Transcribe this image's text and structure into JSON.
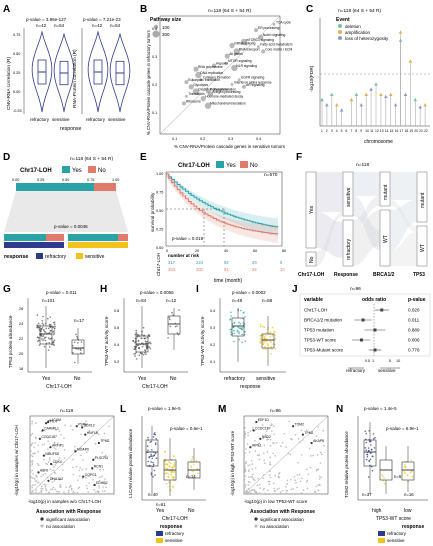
{
  "colors": {
    "refractory": "#2f3a8f",
    "sensitive": "#f2c31b",
    "teal": "#2aa3a8",
    "salmon": "#e07a6b",
    "deletion": "#7fbfa3",
    "amplification": "#e2b14e",
    "loh": "#8f9cc6",
    "grey": "#9a9a9a"
  },
  "panels": {
    "A": {
      "letter": "A",
      "left": {
        "ylabel": "CNV-RNA correlation (R)",
        "pvalue": "p-value = 3.96e-127",
        "n1": "n=42",
        "n2": "n=54"
      },
      "right": {
        "ylabel": "RNA-Protein correlation (R)",
        "pvalue": "p-value = 7.21e-23",
        "n1": "n=42",
        "n2": "n=54"
      },
      "xlabel": "response",
      "yticks": [
        "0.75",
        "0.50",
        "0.25",
        "0.00",
        "-0.25"
      ],
      "cats": [
        "refractory",
        "sensitive"
      ]
    },
    "B": {
      "letter": "B",
      "n": "n=118 (64 S + 54 R)",
      "legend_title": "Pathway size",
      "legend_items": [
        "100",
        "300"
      ],
      "xlabel": "% CNV-RNA/Protein cascade genes in sensitive tumors",
      "ylabel": "% CNV-RNA/Protein cascade genes in refractory tumors",
      "xticks": [
        "0.1",
        "0.2",
        "0.3",
        "0.4"
      ],
      "yticks": [
        "0.4",
        "0.3",
        "0.2",
        "0.1"
      ],
      "labels": [
        "TCA cycle",
        "ER processing",
        "Notch signaling",
        "mTORC1 signaling",
        "Fatty acid metabolism",
        "Core matrix / ECM",
        "mRNA splicing",
        "RNA transport",
        "MTOR signaling",
        "Hypoxia",
        "RNA polymerase",
        "DNA replication",
        "Collagen formation",
        "Eukaryotic translation",
        "Glycolysis",
        "Oxidative phosphorylation",
        "Translation",
        "Ribosome",
        "Hormone-mediated decay",
        "NLR signaling",
        "Interferon alpha response",
        "Proteasome",
        "Antigen processing",
        "Mitochondrial translation",
        "EGFR signaling",
        "AR signaling",
        "All genes"
      ]
    },
    "C": {
      "letter": "C",
      "n": "n=118 (64 S + 54 R)",
      "legend_title": "Event",
      "legend_items": [
        "deletion",
        "amplification",
        "loss of heterozygosity"
      ],
      "xlabel": "chromosome",
      "ylabel": "-log10(FDR)",
      "xticks": [
        "1",
        "2",
        "3",
        "4",
        "5",
        "6",
        "7",
        "8",
        "9",
        "10",
        "11",
        "12",
        "13",
        "14",
        "15",
        "16",
        "17",
        "18",
        "19",
        "20",
        "21",
        "22"
      ]
    },
    "D": {
      "letter": "D",
      "n": "n=118 (64 S + 54 R)",
      "legend_title": "Chr17-LOH",
      "legend_yes": "Yes",
      "legend_no": "No",
      "bar_ticks": [
        "0.00",
        "0.25",
        "0.50",
        "0.75",
        "1.00"
      ],
      "pvalue": "p-value = 0.0046",
      "response_label": "response",
      "refractory": "refractory",
      "sensitive": "sensitive"
    },
    "E": {
      "letter": "E",
      "n": "n=570",
      "legend_title": "Chr17-LOH",
      "legend_yes": "Yes",
      "legend_no": "No",
      "ylabel": "survival probability",
      "xlabel": "time (month)",
      "pvalue": "p-value = 0.019",
      "risk_title": "number at risk",
      "risk_ylabel": "Chr17-LOH",
      "xticks": [
        "0",
        "20",
        "40",
        "60",
        "80"
      ],
      "yticks": [
        "1.00",
        "0.75",
        "0.50",
        "0.25",
        "0.00"
      ],
      "risk_yes": [
        "317",
        "224",
        "92",
        "29",
        "5"
      ],
      "risk_no": [
        "253",
        "202",
        "91",
        "34",
        "10"
      ]
    },
    "F": {
      "letter": "F",
      "n": "n=118",
      "axes": [
        "Chr17-LOH",
        "Response",
        "BRCA1/2",
        "TP53"
      ],
      "nodes": [
        "Yes",
        "No",
        "sensitive",
        "refractory",
        "mutant",
        "WT",
        "mutant",
        "WT"
      ]
    },
    "G": {
      "letter": "G",
      "pvalue": "p-value = 0.011",
      "ylabel": "TP53 protein abundance",
      "xlabel": "Chr17-LOH",
      "n1": "n=101",
      "n2": "n=17",
      "cats": [
        "Yes",
        "No"
      ],
      "yticks": [
        "26",
        "24",
        "22",
        "20",
        "18"
      ]
    },
    "H": {
      "letter": "H",
      "pvalue": "p-value = 0.0055",
      "ylabel": "TP53-WT activity score",
      "xlabel": "Chr17-LOH",
      "n1": "n=84",
      "n2": "n=12",
      "cats": [
        "Yes",
        "No"
      ],
      "yticks": [
        "0.8",
        "0.6",
        "0.4",
        "0.2"
      ]
    },
    "I": {
      "letter": "I",
      "pvalue": "p-value = 0.0002",
      "ylabel": "TP53-WT activity score",
      "xlabel": "response",
      "n1": "n=48",
      "n2": "n=58",
      "cats": [
        "refractory",
        "sensitive"
      ],
      "yticks": [
        "0.4",
        "0.3",
        "0.2",
        "0.1"
      ]
    },
    "J": {
      "letter": "J",
      "n": "n=96",
      "headers": [
        "variable",
        "odds ratio",
        "p-value"
      ],
      "rows": [
        {
          "variable": "Chr17-LOH",
          "or": 2.1,
          "lo": 1.1,
          "hi": 4.2,
          "p": "0.026"
        },
        {
          "variable": "BRCA1/2 mutation",
          "or": 0.35,
          "lo": 0.15,
          "hi": 0.8,
          "p": "0.011"
        },
        {
          "variable": "TP53 mutation",
          "or": 1.1,
          "lo": 0.4,
          "hi": 3.0,
          "p": "0.889"
        },
        {
          "variable": "TP53-WT score",
          "or": 0.3,
          "lo": 0.12,
          "hi": 0.7,
          "p": "0.006"
        },
        {
          "variable": "TP53-Mutant score",
          "or": 1.1,
          "lo": 0.6,
          "hi": 2.0,
          "p": "0.776"
        }
      ],
      "xticks": [
        "0.5",
        "1",
        "5",
        "10"
      ],
      "left_label": "refractory",
      "right_label": "sensitive"
    },
    "K": {
      "letter": "K",
      "n": "n=118",
      "ylabel": "-log10(p) in samples w/ Chr17-LOH",
      "xlabel": "-log10(p) in samples w/o Chr17-LOH",
      "legend_title": "Association with Response",
      "legend_sig": "significant association",
      "legend_ns": "no association",
      "gene_labels": [
        "L1CAM",
        "PSPH",
        "CARMIL1",
        "HNF1B",
        "CCDC187",
        "TPM2",
        "ARFIP1",
        "MOAP1",
        "NDUFS8",
        "PLSCR3",
        "CDK4",
        "RCN1",
        "ATF6",
        "COPG1",
        "DNAJA2",
        "EDHB2",
        "PPIL4",
        "DDX12"
      ]
    },
    "L": {
      "letter": "L",
      "pvalue_top": "p-value = 1.9e-5",
      "pvalue_inner": "p-value = 0.6e-1",
      "ylabel": "L1CAM relative protein abundance",
      "xlabel": "Chr17-LOH",
      "cats": [
        "Yes",
        "No"
      ],
      "n1": "n=40",
      "n2": "n=61",
      "n3": "n=14",
      "legend_title": "response",
      "legend_items": [
        "refractory",
        "sensitive"
      ]
    },
    "M": {
      "letter": "M",
      "n": "n=96",
      "ylabel": "-log10(p) in high TP53-WT score",
      "xlabel": "-log10(p) in low TP53-WT score",
      "legend_title": "Association with Response",
      "legend_sig": "significant association",
      "legend_ns": "no association",
      "gene_labels": [
        "EEF1D",
        "TOM2",
        "CCDC187",
        "TPM2",
        "NSD2",
        "AKAP8",
        "HIPK1"
      ]
    },
    "N": {
      "letter": "N",
      "pvalue_top": "p-value = 1.4e-5",
      "pvalue_inner": "p-value = 6.9e-1",
      "ylabel": "TOM2 relative protein abundance",
      "xlabel": "TP53-WT score",
      "cats": [
        "high",
        "low"
      ],
      "n1": "n=37",
      "n2": "n=5",
      "n3": "n=16",
      "legend_title": "response",
      "legend_items": [
        "refractory",
        "sensitive"
      ]
    }
  }
}
